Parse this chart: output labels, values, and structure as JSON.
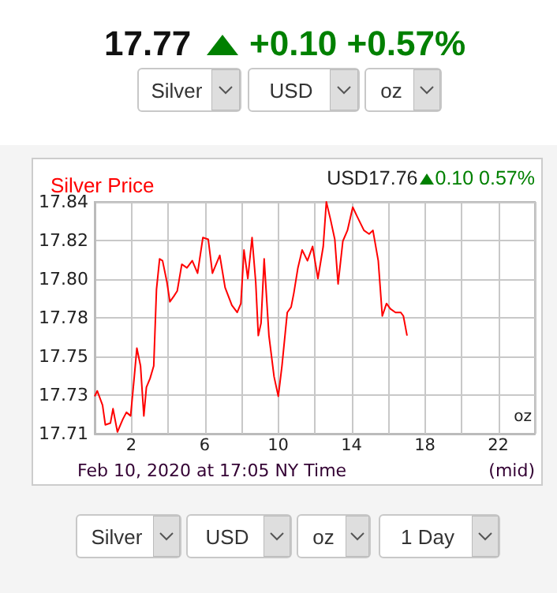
{
  "chart_data": {
    "type": "line",
    "title": "Silver Price",
    "annotations": [
      "17.77",
      "+0.10 +0.57%",
      "USD17.76",
      "0.10 0.57%",
      "oz",
      "Feb 10, 2020 at 17:05 NY Time",
      "(mid)",
      "Silver",
      "USD",
      "oz",
      "Silver",
      "USD",
      "oz",
      "1 Day"
    ],
    "x": [
      0,
      0.14,
      0.43,
      0.58,
      0.86,
      1.0,
      1.24,
      1.53,
      1.73,
      1.96,
      2.16,
      2.3,
      2.5,
      2.68,
      2.82,
      3.02,
      3.22,
      3.37,
      3.54,
      3.7,
      3.94,
      4.1,
      4.31,
      4.5,
      4.75,
      5.03,
      5.32,
      5.61,
      5.9,
      6.19,
      6.42,
      6.82,
      7.11,
      7.48,
      7.77,
      7.97,
      8.14,
      8.35,
      8.58,
      8.78,
      8.92,
      9.07,
      9.24,
      9.5,
      9.78,
      10.01,
      10.21,
      10.5,
      10.71,
      10.86,
      11.08,
      11.31,
      11.6,
      11.88,
      12.17,
      12.46,
      12.63,
      12.86,
      13.09,
      13.27,
      13.53,
      13.78,
      14.07,
      14.3,
      14.68,
      14.96,
      15.17,
      15.46,
      15.68,
      15.91,
      16.12,
      16.4,
      16.69,
      16.83,
      17.03
    ],
    "series": [
      {
        "color": "#ff0000",
        "values": [
          17.731,
          17.734,
          17.726,
          17.715,
          17.716,
          17.724,
          17.711,
          17.718,
          17.722,
          17.72,
          17.742,
          17.758,
          17.748,
          17.72,
          17.736,
          17.741,
          17.748,
          17.791,
          17.808,
          17.807,
          17.795,
          17.784,
          17.787,
          17.79,
          17.805,
          17.803,
          17.807,
          17.8,
          17.82,
          17.819,
          17.8,
          17.81,
          17.792,
          17.782,
          17.778,
          17.783,
          17.813,
          17.797,
          17.82,
          17.795,
          17.765,
          17.772,
          17.808,
          17.765,
          17.742,
          17.731,
          17.748,
          17.778,
          17.781,
          17.789,
          17.803,
          17.813,
          17.807,
          17.815,
          17.797,
          17.815,
          17.84,
          17.83,
          17.819,
          17.794,
          17.818,
          17.824,
          17.837,
          17.832,
          17.824,
          17.822,
          17.824,
          17.807,
          17.776,
          17.783,
          17.78,
          17.778,
          17.778,
          17.776,
          17.765
        ]
      }
    ],
    "xlim": [
      0,
      24
    ],
    "xticks": [
      {
        "value": 0,
        "label": null
      },
      2,
      {
        "value": 4,
        "label": null
      },
      6,
      {
        "value": 8,
        "label": null
      },
      10,
      {
        "value": 12,
        "label": null
      },
      14,
      {
        "value": 16,
        "label": null
      },
      18,
      {
        "value": 20,
        "label": null
      },
      22,
      {
        "value": 24,
        "label": null
      }
    ],
    "ylim": [
      17.71,
      17.84
    ],
    "yticks": [
      {
        "value": 17.71,
        "label": "17.71"
      },
      {
        "value": 17.7317,
        "label": "17.73"
      },
      {
        "value": 17.7533,
        "label": "17.75"
      },
      {
        "value": 17.775,
        "label": "17.78"
      },
      {
        "value": 17.7967,
        "label": "17.80"
      },
      {
        "value": 17.8183,
        "label": "17.82"
      },
      {
        "value": 17.84,
        "label": "17.84"
      }
    ],
    "grid": true,
    "marker": "none",
    "line_style": "solid"
  }
}
